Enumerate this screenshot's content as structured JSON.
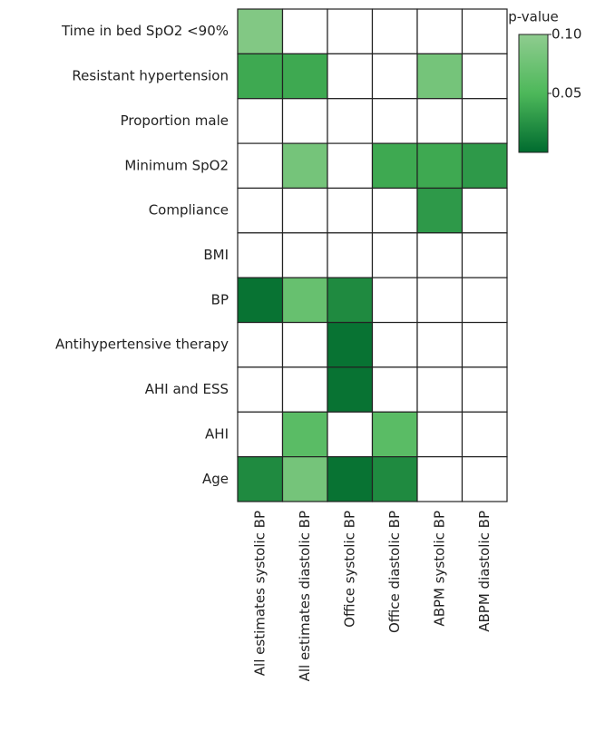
{
  "chart_data": {
    "type": "heatmap",
    "rows": [
      "Time in bed SpO2 <90%",
      "Resistant hypertension",
      "Proportion male",
      "Minimum SpO2",
      "Compliance",
      "BMI",
      "BP",
      "Antihypertensive therapy",
      "AHI and ESS",
      "AHI",
      "Age"
    ],
    "columns": [
      "All estimates systolic BP",
      "All estimates diastolic BP",
      "Office systolic BP",
      "Office diastolic BP",
      "ABPM systolic BP",
      "ABPM diastolic BP"
    ],
    "values": [
      [
        0.09,
        null,
        null,
        null,
        null,
        null
      ],
      [
        0.04,
        0.04,
        null,
        null,
        0.08,
        null
      ],
      [
        null,
        null,
        null,
        null,
        null,
        null
      ],
      [
        null,
        0.08,
        null,
        0.04,
        0.04,
        0.03
      ],
      [
        null,
        null,
        null,
        null,
        0.03,
        null
      ],
      [
        null,
        null,
        null,
        null,
        null,
        null
      ],
      [
        0.005,
        0.07,
        0.02,
        null,
        null,
        null
      ],
      [
        null,
        null,
        0.005,
        null,
        null,
        null
      ],
      [
        null,
        null,
        0.005,
        null,
        null,
        null
      ],
      [
        null,
        0.06,
        null,
        0.06,
        null,
        null
      ],
      [
        0.02,
        0.08,
        0.005,
        0.02,
        null,
        null
      ]
    ],
    "colorbar_label": "p-value",
    "clim": [
      0,
      0.1
    ],
    "cticks": [
      0.05,
      {
        "value": 0.1,
        "label": "0.10"
      }
    ],
    "colors": [
      "#006b2f",
      "#4db85a",
      "#8fcc8f"
    ]
  }
}
